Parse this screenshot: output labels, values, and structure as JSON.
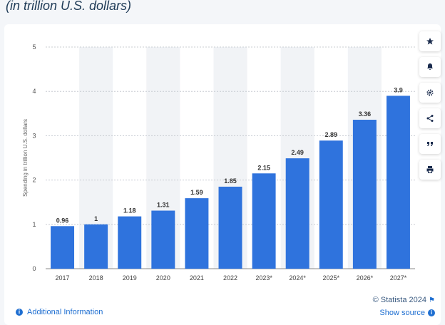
{
  "header": {
    "subtitle": "(in trillion U.S. dollars)"
  },
  "chart_data": {
    "type": "bar",
    "categories": [
      "2017",
      "2018",
      "2019",
      "2020",
      "2021",
      "2022",
      "2023*",
      "2024*",
      "2025*",
      "2026*",
      "2027*"
    ],
    "values": [
      0.96,
      1,
      1.18,
      1.31,
      1.59,
      1.85,
      2.15,
      2.49,
      2.89,
      3.36,
      3.9
    ],
    "value_labels": [
      "0.96",
      "1",
      "1.18",
      "1.31",
      "1.59",
      "1.85",
      "2.15",
      "2.49",
      "2.89",
      "3.36",
      "3.9"
    ],
    "ylabel": "Spending in trillion U.S. dollars",
    "xlabel": "",
    "ylim": [
      0,
      5
    ],
    "yticks": [
      0,
      1,
      2,
      3,
      4,
      5
    ],
    "grid": true,
    "alternating_column_shading": true,
    "bar_color": "#2f73dd"
  },
  "toolbar": {
    "buttons": [
      {
        "name": "favorite-button",
        "icon": "star-icon"
      },
      {
        "name": "notification-button",
        "icon": "bell-icon"
      },
      {
        "name": "settings-button",
        "icon": "gear-icon"
      },
      {
        "name": "share-button",
        "icon": "share-icon"
      },
      {
        "name": "cite-button",
        "icon": "quote-icon"
      },
      {
        "name": "print-button",
        "icon": "print-icon"
      }
    ]
  },
  "footer": {
    "copyright": "© Statista 2024",
    "show_source": "Show source",
    "additional_info": "Additional Information"
  },
  "colors": {
    "accent": "#1f6fd1",
    "bar": "#2f73dd",
    "shade": "#f1f3f6",
    "grid": "#c8ccd2"
  }
}
